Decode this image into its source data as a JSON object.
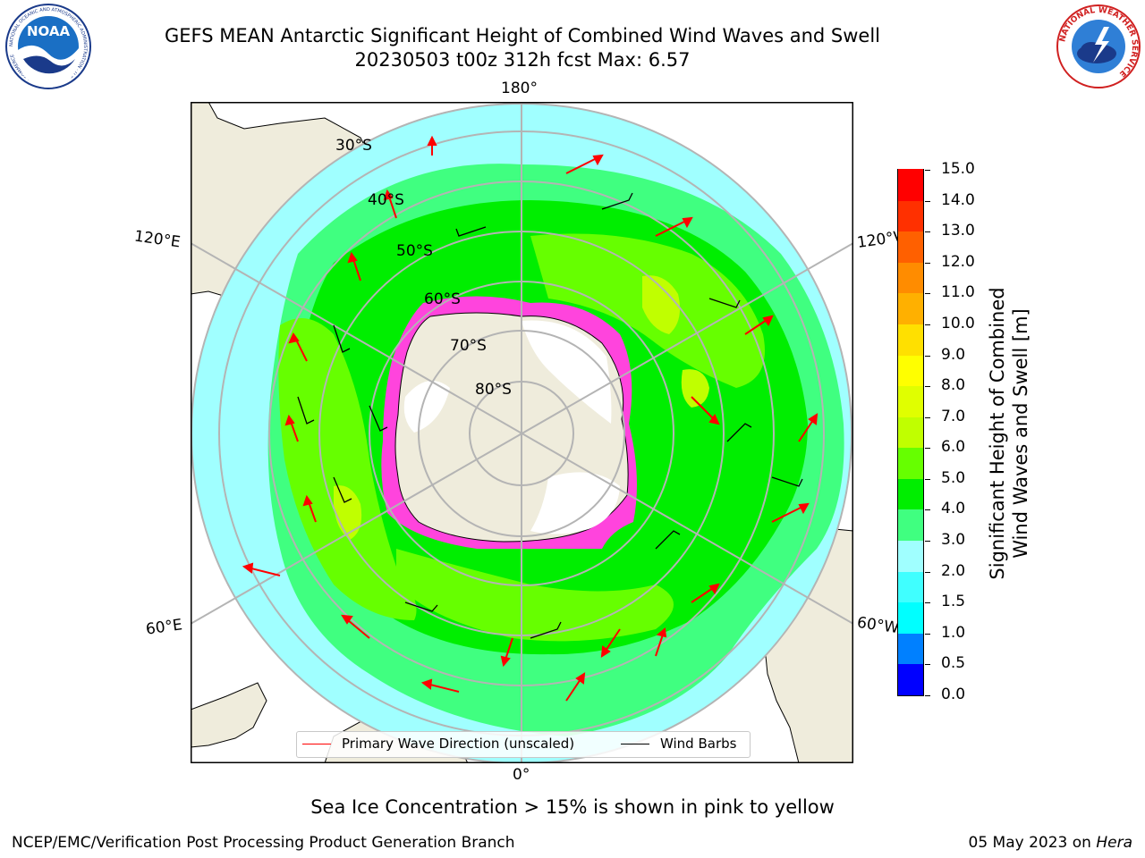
{
  "header": {
    "title": "GEFS MEAN Antarctic Significant Height of Combined Wind Waves and Swell",
    "subtitle": "20230503 t00z 312h fcst   Max: 6.57"
  },
  "logos": {
    "noaa_text": "NOAA",
    "noaa_ring_text": "NATIONAL OCEANIC AND ATMOSPHERIC ADMINISTRATION · U.S. DEPARTMENT OF COMMERCE",
    "nws_ring_text": "NATIONAL WEATHER SERVICE"
  },
  "map": {
    "projection": "south-polar-stereographic",
    "longitude_labels": {
      "top": "180°",
      "bottom": "0°",
      "upper_left": "120°E",
      "lower_left": "60°E",
      "upper_right": "120°W",
      "lower_right": "60°W"
    },
    "latitude_labels": [
      "30°S",
      "40°S",
      "50°S",
      "60°S",
      "70°S",
      "80°S"
    ],
    "colors": {
      "land": "#efecdc",
      "ocean_missing": "#ffffff",
      "grid": "#b4b4b4",
      "wave_arrow": "#ff0000",
      "wind_barb": "#000000",
      "sea_ice": "#ff44dd"
    }
  },
  "legend": {
    "wave_direction": "Primary Wave Direction (unscaled)",
    "wind_barbs": "Wind Barbs"
  },
  "colorbar": {
    "title_line1": "Significant Height of Combined",
    "title_line2": "Wind Waves and Swell [m]",
    "tick_labels": [
      "0.0",
      "0.5",
      "1.0",
      "1.5",
      "2.0",
      "3.0",
      "4.0",
      "5.0",
      "6.0",
      "7.0",
      "8.0",
      "9.0",
      "10.0",
      "11.0",
      "12.0",
      "13.0",
      "14.0",
      "15.0"
    ],
    "colors": [
      "#0000ff",
      "#0080ff",
      "#00ffff",
      "#40ffff",
      "#a0ffff",
      "#40ff80",
      "#00ee00",
      "#66ff00",
      "#c0ff00",
      "#e0ff00",
      "#ffff00",
      "#ffe000",
      "#ffb000",
      "#ff8c00",
      "#ff6000",
      "#ff3000",
      "#ff0000"
    ]
  },
  "sea_ice_note": "Sea Ice Concentration > 15% is shown in pink to yellow",
  "footer": {
    "left": "NCEP/EMC/Verification Post Processing Product Generation Branch",
    "date": "05 May 2023 on ",
    "machine": "Hera"
  }
}
